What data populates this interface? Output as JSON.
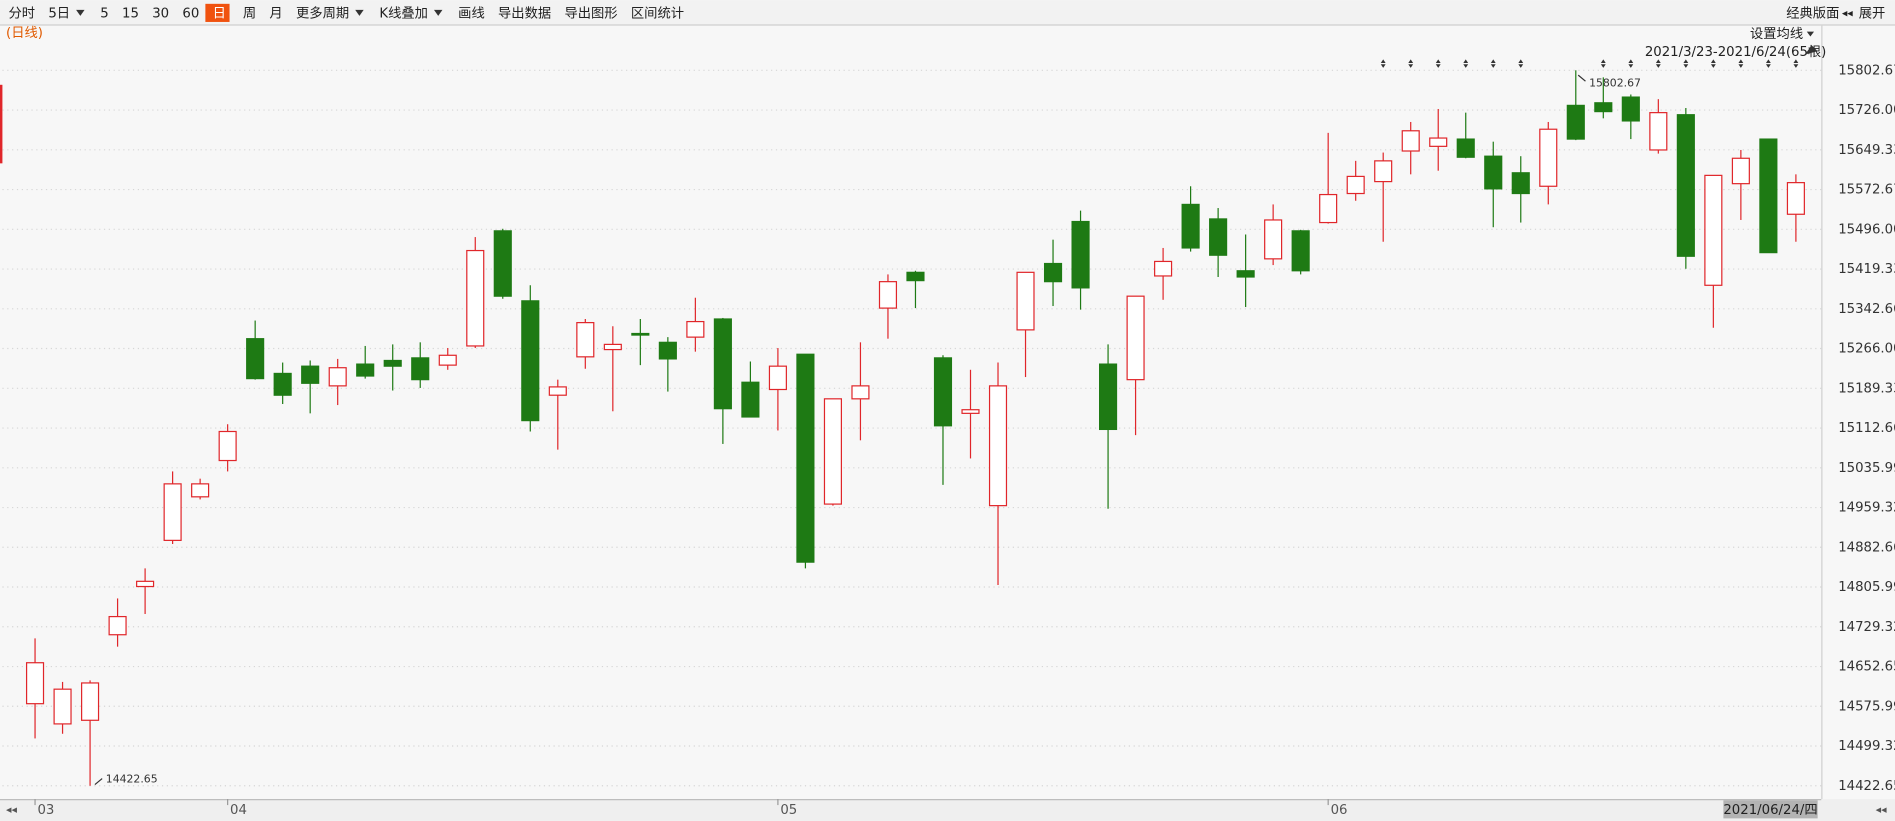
{
  "toolbar": {
    "items": [
      {
        "label": "分时"
      },
      {
        "label": "5日",
        "dropdown": true
      },
      {
        "label": "5"
      },
      {
        "label": "15"
      },
      {
        "label": "30"
      },
      {
        "label": "60"
      },
      {
        "label": "日",
        "active": true
      },
      {
        "label": "周"
      },
      {
        "label": "月"
      },
      {
        "label": "更多周期",
        "dropdown": true
      },
      {
        "label": "K线叠加",
        "dropdown": true
      },
      {
        "label": "画线"
      },
      {
        "label": "导出数据"
      },
      {
        "label": "导出图形"
      },
      {
        "label": "区间统计"
      }
    ],
    "right_items": [
      "经典版面",
      "展开"
    ]
  },
  "chart_data": {
    "type": "candlestick",
    "period_label": "(日线)",
    "ma_setting": "设置均线",
    "range_label": "2021/3/23-2021/6/24(65根)",
    "cursor_label": "2021/06/24/四",
    "categories": [
      "03",
      null,
      null,
      null,
      null,
      null,
      null,
      "04",
      null,
      null,
      null,
      null,
      null,
      null,
      null,
      null,
      null,
      null,
      null,
      null,
      null,
      null,
      null,
      null,
      null,
      null,
      null,
      "05",
      null,
      null,
      null,
      null,
      null,
      null,
      null,
      null,
      null,
      null,
      null,
      null,
      null,
      null,
      null,
      null,
      null,
      null,
      null,
      "06",
      null,
      null,
      null,
      null,
      null,
      null,
      null,
      null,
      null,
      null,
      null,
      null,
      null,
      null,
      null,
      null,
      null
    ],
    "open": [
      14581,
      14542,
      14549,
      14714,
      14807,
      14896,
      14980,
      15050,
      15285,
      15218,
      15232,
      15194,
      15236,
      15243,
      15248,
      15234,
      15271,
      15493,
      15358,
      15176,
      15250,
      15264,
      15295,
      15278,
      15288,
      15323,
      15201,
      15187,
      15255,
      14966,
      15169,
      15344,
      15413,
      15248,
      15141,
      14963,
      15302,
      15430,
      15511,
      15236,
      15206,
      15406,
      15544,
      15516,
      15416,
      15439,
      15493,
      15509,
      15565,
      15588,
      15647,
      15656,
      15670,
      15637,
      15605,
      15579,
      15735,
      15740,
      15751,
      15649,
      15717,
      15388,
      15584,
      15670,
      15525
    ],
    "high": [
      14707,
      14623,
      14626,
      14784,
      14842,
      15029,
      15015,
      15120,
      15320,
      15239,
      15243,
      15246,
      15271,
      15274,
      15278,
      15267,
      15481,
      15497,
      15388,
      15206,
      15323,
      15309,
      15323,
      15288,
      15364,
      15325,
      15241,
      15267,
      15255,
      15169,
      15278,
      15409,
      15416,
      15253,
      15225,
      15239,
      15413,
      15476,
      15532,
      15274,
      15367,
      15460,
      15579,
      15537,
      15486,
      15544,
      15495,
      15682,
      15628,
      15644,
      15703,
      15728,
      15721,
      15665,
      15637,
      15703,
      15802.67,
      15789,
      15756,
      15747,
      15730,
      15600,
      15649,
      15670,
      15602
    ],
    "low": [
      14514,
      14523,
      14422.65,
      14691,
      14754,
      14889,
      14975,
      15029,
      15206,
      15159,
      15141,
      15157,
      15208,
      15185,
      15190,
      15225,
      15267,
      15362,
      15106,
      15071,
      15227,
      15145,
      15234,
      15183,
      15260,
      15082,
      15134,
      15108,
      14842,
      14963,
      15089,
      15285,
      15344,
      15003,
      15054,
      14810,
      15211,
      15348,
      15341,
      14957,
      15099,
      15360,
      15453,
      15404,
      15346,
      15427,
      15409,
      15507,
      15551,
      15472,
      15602,
      15609,
      15633,
      15500,
      15509,
      15544,
      15668,
      15710,
      15670,
      15642,
      15420,
      15306,
      15514,
      15451,
      15472
    ],
    "close": [
      14660,
      14609,
      14621,
      14749,
      14817,
      15005,
      15005,
      15106,
      15208,
      15176,
      15199,
      15229,
      15213,
      15232,
      15206,
      15253,
      15455,
      15367,
      15127,
      15192,
      15316,
      15274,
      15292,
      15246,
      15318,
      15150,
      15134,
      15232,
      14854,
      15169,
      15194,
      15395,
      15397,
      15117,
      15148,
      15194,
      15413,
      15395,
      15383,
      15110,
      15367,
      15434,
      15460,
      15446,
      15404,
      15514,
      15416,
      15563,
      15598,
      15628,
      15686,
      15672,
      15635,
      15574,
      15565,
      15689,
      15670,
      15723,
      15705,
      15721,
      15444,
      15600,
      15633,
      15451,
      15586
    ],
    "up_color": "#e0262a",
    "down_color": "#1e7a14",
    "ylim": [
      14399.41,
      15844.63
    ],
    "yticks": [
      14422.65,
      14499.32,
      14575.99,
      14652.65,
      14729.32,
      14805.99,
      14882.66,
      14959.32,
      15035.99,
      15112.66,
      15189.33,
      {
        "value": 15266,
        "label": "15266.00"
      },
      15342.66,
      15419.33,
      {
        "value": 15496,
        "label": "15496.00"
      },
      15572.67,
      15649.33,
      {
        "value": 15726,
        "label": "15726.00"
      },
      15802.67
    ],
    "grid": true
  }
}
